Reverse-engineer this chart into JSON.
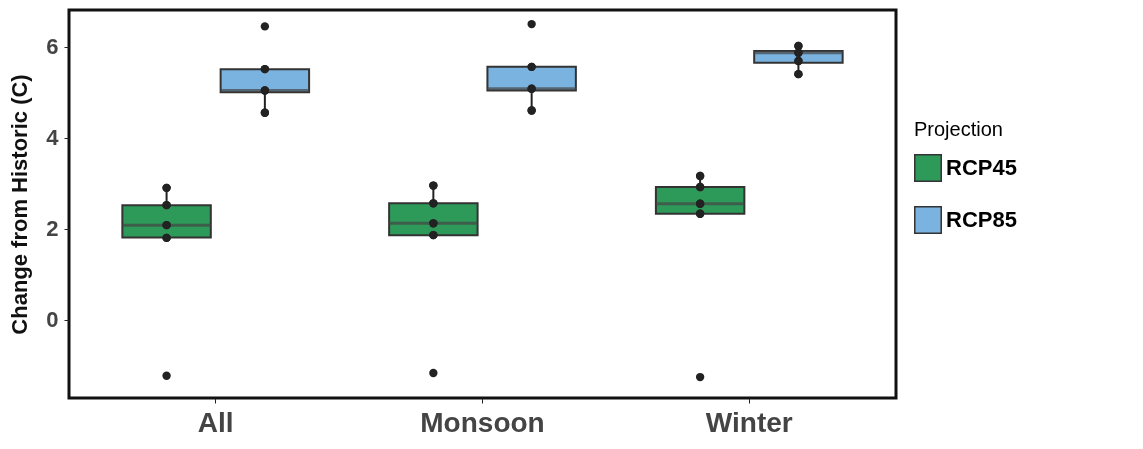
{
  "chart_data": {
    "type": "box",
    "ylabel": "Change from Historic (C)",
    "legend_title": "Projection",
    "legend": "right",
    "categories": [
      "All",
      "Monsoon",
      "Winter"
    ],
    "ylim": [
      -1.72,
      6.81
    ],
    "yticks": [
      0,
      2,
      4,
      6
    ],
    "series": [
      {
        "name": "RCP45",
        "color": "#2e9a5a",
        "boxes": [
          {
            "low": 1.8,
            "q1": 1.81,
            "median": 2.08,
            "q3": 2.52,
            "high": 2.9,
            "outliers": [
              -1.23
            ]
          },
          {
            "low": 1.86,
            "q1": 1.86,
            "median": 2.12,
            "q3": 2.56,
            "high": 2.95,
            "outliers": [
              -1.17
            ]
          },
          {
            "low": 2.33,
            "q1": 2.33,
            "median": 2.55,
            "q3": 2.92,
            "high": 3.16,
            "outliers": [
              -1.26
            ]
          }
        ]
      },
      {
        "name": "RCP85",
        "color": "#7ab3e0",
        "boxes": [
          {
            "low": 4.55,
            "q1": 5.0,
            "median": 5.04,
            "q3": 5.51,
            "high": 5.51,
            "outliers": [
              6.45
            ]
          },
          {
            "low": 4.6,
            "q1": 5.04,
            "median": 5.08,
            "q3": 5.56,
            "high": 5.56,
            "outliers": [
              6.5
            ]
          },
          {
            "low": 5.4,
            "q1": 5.65,
            "median": 5.87,
            "q3": 5.91,
            "high": 6.02
          }
        ]
      },
      {
        "type": "scatter",
        "color": "#222222",
        "marker": "circle",
        "x": [
          "All",
          "All",
          "All",
          "All",
          "Monsoon",
          "Monsoon",
          "Monsoon",
          "Monsoon",
          "Winter",
          "Winter",
          "Winter",
          "Winter"
        ],
        "values": [
          2.9,
          2.52,
          2.08,
          1.8,
          2.95,
          2.56,
          2.12,
          1.86,
          3.16,
          2.92,
          2.55,
          2.33
        ]
      },
      {
        "type": "scatter",
        "color": "#222222",
        "marker": "circle",
        "x": [
          "All",
          "All",
          "All",
          "Monsoon",
          "Monsoon",
          "Monsoon",
          "Winter",
          "Winter",
          "Winter",
          "Winter"
        ],
        "values": [
          5.51,
          5.04,
          4.55,
          5.56,
          5.08,
          4.6,
          6.02,
          5.87,
          5.69,
          5.4
        ]
      }
    ]
  }
}
